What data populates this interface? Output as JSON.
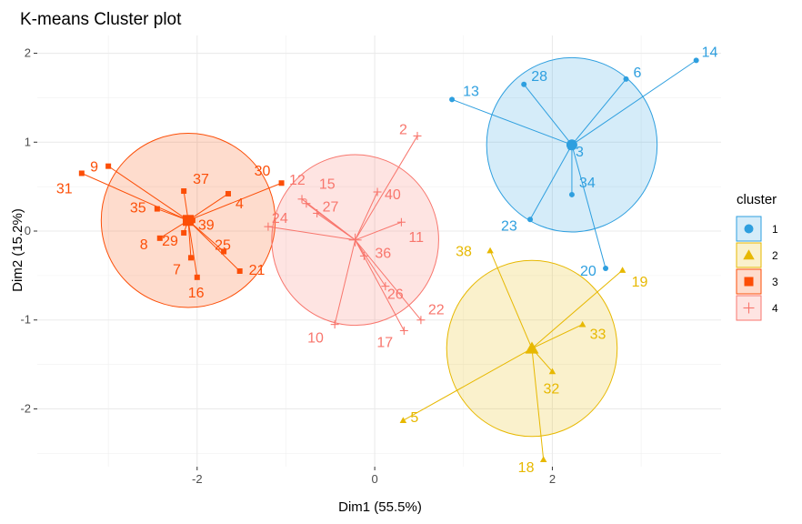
{
  "chart_data": {
    "type": "scatter",
    "title": "K-means Cluster plot",
    "xlabel": "Dim1 (55.5%)",
    "ylabel": "Dim2 (15.2%)",
    "xlim": [
      -3.8,
      3.9
    ],
    "ylim": [
      -2.65,
      2.2
    ],
    "x_ticks": [
      -2,
      0,
      2
    ],
    "y_ticks": [
      -2,
      -1,
      0,
      1,
      2
    ],
    "grid": true,
    "legend": {
      "title": "cluster",
      "position": "right",
      "labels": [
        "1",
        "2",
        "3",
        "4"
      ]
    },
    "clusters": [
      {
        "name": "1",
        "color": "#2E9FDF",
        "shape": "circle",
        "center": [
          2.22,
          0.97
        ],
        "ellipse_radius": [
          0.96,
          0.98
        ],
        "points": [
          {
            "id": "13",
            "x": 0.87,
            "y": 1.48
          },
          {
            "id": "28",
            "x": 1.68,
            "y": 1.65
          },
          {
            "id": "6",
            "x": 2.83,
            "y": 1.71
          },
          {
            "id": "14",
            "x": 3.62,
            "y": 1.92
          },
          {
            "id": "3",
            "x": 2.2,
            "y": 0.94
          },
          {
            "id": "34",
            "x": 2.22,
            "y": 0.41
          },
          {
            "id": "23",
            "x": 1.75,
            "y": 0.13
          },
          {
            "id": "20",
            "x": 2.6,
            "y": -0.42
          }
        ]
      },
      {
        "name": "2",
        "color": "#E7B800",
        "shape": "triangle",
        "center": [
          1.77,
          -1.32
        ],
        "ellipse_radius": [
          0.96,
          0.99
        ],
        "points": [
          {
            "id": "38",
            "x": 1.3,
            "y": -0.22
          },
          {
            "id": "19",
            "x": 2.79,
            "y": -0.44
          },
          {
            "id": "33",
            "x": 2.34,
            "y": -1.05
          },
          {
            "id": "32",
            "x": 2.0,
            "y": -1.58
          },
          {
            "id": "5",
            "x": 0.32,
            "y": -2.13
          },
          {
            "id": "18",
            "x": 1.9,
            "y": -2.57
          }
        ]
      },
      {
        "name": "3",
        "color": "#FC4E07",
        "shape": "square",
        "center": [
          -2.1,
          0.12
        ],
        "ellipse_radius": [
          0.98,
          0.98
        ],
        "points": [
          {
            "id": "9",
            "x": -3.0,
            "y": 0.73
          },
          {
            "id": "31",
            "x": -3.3,
            "y": 0.65
          },
          {
            "id": "35",
            "x": -2.45,
            "y": 0.25
          },
          {
            "id": "37",
            "x": -2.15,
            "y": 0.45
          },
          {
            "id": "30",
            "x": -1.05,
            "y": 0.54
          },
          {
            "id": "4",
            "x": -1.65,
            "y": 0.42
          },
          {
            "id": "39",
            "x": -2.05,
            "y": 0.12
          },
          {
            "id": "8",
            "x": -2.42,
            "y": -0.08
          },
          {
            "id": "29",
            "x": -2.15,
            "y": -0.02
          },
          {
            "id": "25",
            "x": -1.7,
            "y": -0.23
          },
          {
            "id": "21",
            "x": -1.52,
            "y": -0.45
          },
          {
            "id": "16",
            "x": -2.0,
            "y": -0.52
          },
          {
            "id": "7",
            "x": -2.07,
            "y": -0.3
          }
        ]
      },
      {
        "name": "4",
        "color": "#F8766D",
        "shape": "cross",
        "center": [
          -0.22,
          -0.1
        ],
        "ellipse_radius": [
          0.94,
          0.96
        ],
        "points": [
          {
            "id": "2",
            "x": 0.48,
            "y": 1.07
          },
          {
            "id": "12",
            "x": -0.82,
            "y": 0.36
          },
          {
            "id": "15",
            "x": -0.77,
            "y": 0.31
          },
          {
            "id": "27",
            "x": -0.65,
            "y": 0.2
          },
          {
            "id": "24",
            "x": -1.2,
            "y": 0.05
          },
          {
            "id": "40",
            "x": 0.03,
            "y": 0.44
          },
          {
            "id": "11",
            "x": 0.3,
            "y": 0.1
          },
          {
            "id": "36",
            "x": -0.12,
            "y": -0.28
          },
          {
            "id": "26",
            "x": 0.12,
            "y": -0.62
          },
          {
            "id": "22",
            "x": 0.52,
            "y": -1.0
          },
          {
            "id": "10",
            "x": -0.45,
            "y": -1.05
          },
          {
            "id": "17",
            "x": 0.33,
            "y": -1.12
          }
        ]
      }
    ]
  }
}
